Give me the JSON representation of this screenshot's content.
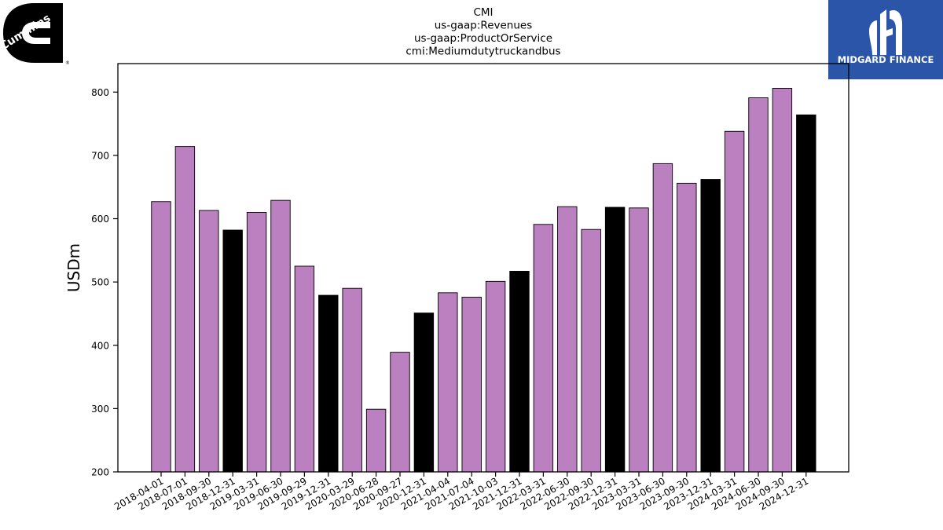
{
  "logos": {
    "left_text": "Cummins",
    "right_text": "MIDGARD FINANCE"
  },
  "chart_data": {
    "type": "bar",
    "title_lines": [
      "CMI",
      "us-gaap:Revenues",
      "us-gaap:ProductOrService",
      "cmi:Mediumdutytruckandbus"
    ],
    "ylabel": "USDm",
    "xlabel": "",
    "ylim": [
      200,
      845
    ],
    "yticks": [
      200,
      300,
      400,
      500,
      600,
      700,
      800
    ],
    "categories": [
      "2018-04-01",
      "2018-07-01",
      "2018-09-30",
      "2018-12-31",
      "2019-03-31",
      "2019-06-30",
      "2019-09-29",
      "2019-12-31",
      "2020-03-29",
      "2020-06-28",
      "2020-09-27",
      "2020-12-31",
      "2021-04-04",
      "2021-07-04",
      "2021-10-03",
      "2021-12-31",
      "2022-03-31",
      "2022-06-30",
      "2022-09-30",
      "2022-12-31",
      "2023-03-31",
      "2023-06-30",
      "2023-09-30",
      "2023-12-31",
      "2024-03-31",
      "2024-06-30",
      "2024-09-30",
      "2024-12-31"
    ],
    "values": [
      627,
      714,
      613,
      582,
      610,
      629,
      525,
      479,
      490,
      299,
      389,
      451,
      483,
      476,
      501,
      517,
      591,
      619,
      583,
      618,
      617,
      687,
      656,
      662,
      738,
      791,
      806,
      764
    ],
    "colors": {
      "quarter": "#bb80bf",
      "year_end": "#000000"
    },
    "year_end_categories": [
      "2018-12-31",
      "2019-12-31",
      "2020-12-31",
      "2021-12-31",
      "2022-12-31",
      "2023-12-31",
      "2024-12-31"
    ]
  }
}
